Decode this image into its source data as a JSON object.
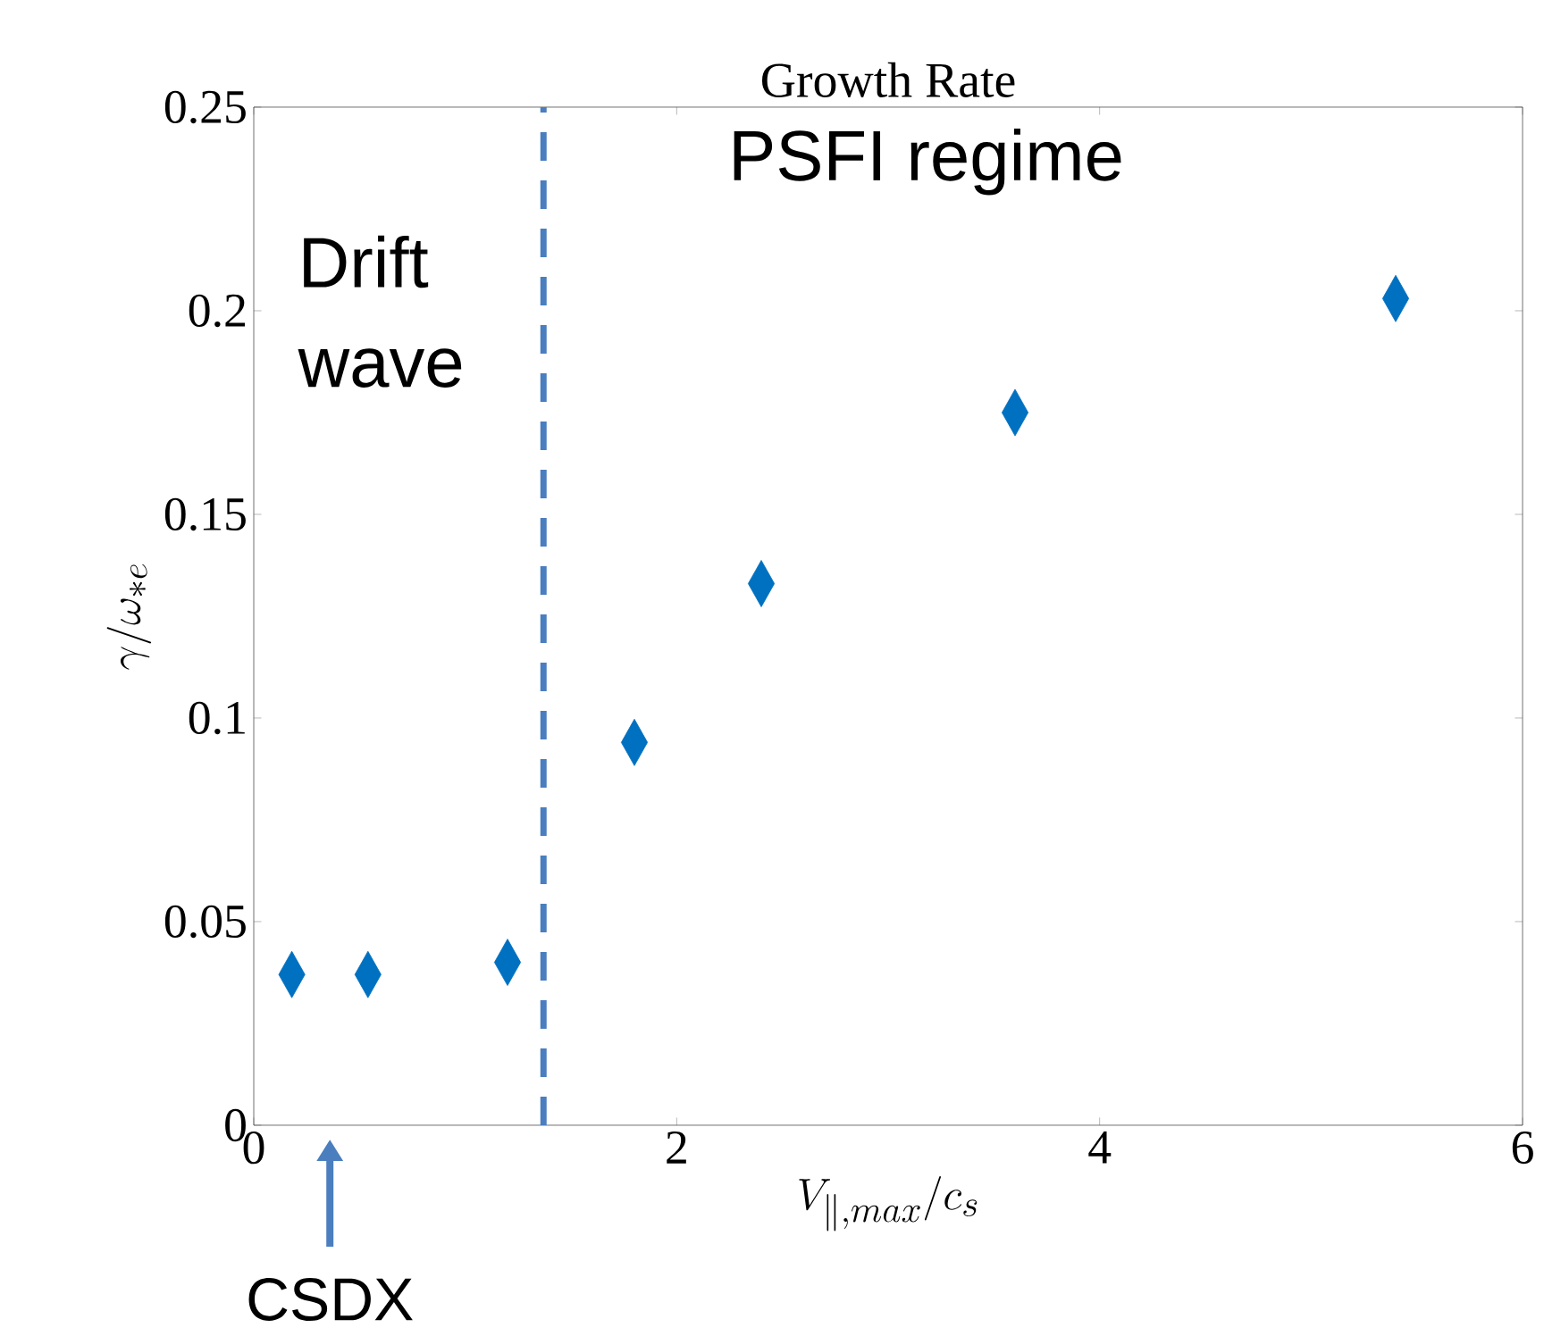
{
  "chart_data": {
    "type": "scatter",
    "title": "Growth Rate",
    "xlabel": "V_{\\parallel,max}/c_s",
    "ylabel": "\\gamma/\\omega_{*e}",
    "x": [
      0.18,
      0.54,
      1.2,
      1.8,
      2.4,
      3.6,
      5.4
    ],
    "series": [
      {
        "color": "#0070c0",
        "values": [
          0.037,
          0.037,
          0.04,
          0.094,
          0.133,
          0.175,
          0.203
        ]
      }
    ],
    "xlim": [
      0,
      6
    ],
    "ylim": [
      0,
      0.25
    ],
    "xticks": [
      0,
      2,
      4,
      6
    ],
    "yticks": [
      0,
      0.05,
      0.1,
      0.15,
      0.2,
      0.25
    ],
    "marker": "diamond",
    "grid": false,
    "ref_lines": [
      {
        "axis": "x",
        "value": 1.37,
        "color": "#4a7ebf",
        "line_style": "dashed"
      }
    ],
    "annotations": [
      "Drift wave",
      "PSFI regime",
      "CSDX"
    ]
  }
}
